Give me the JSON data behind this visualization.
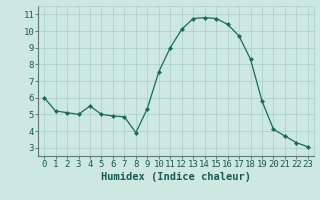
{
  "x": [
    0,
    1,
    2,
    3,
    4,
    5,
    6,
    7,
    8,
    9,
    10,
    11,
    12,
    13,
    14,
    15,
    16,
    17,
    18,
    19,
    20,
    21,
    22,
    23
  ],
  "y": [
    6.0,
    5.2,
    5.1,
    5.0,
    5.5,
    5.0,
    4.9,
    4.85,
    3.9,
    5.35,
    7.55,
    9.0,
    10.1,
    10.75,
    10.8,
    10.75,
    10.4,
    9.7,
    8.3,
    5.8,
    4.1,
    3.7,
    3.3,
    3.05
  ],
  "line_color": "#1a6b5a",
  "marker": "D",
  "marker_size": 2.0,
  "bg_color": "#cce8e0",
  "grid_color": "#a8cec6",
  "xlabel": "Humidex (Indice chaleur)",
  "xlim": [
    -0.5,
    23.5
  ],
  "ylim": [
    2.5,
    11.5
  ],
  "xticks": [
    0,
    1,
    2,
    3,
    4,
    5,
    6,
    7,
    8,
    9,
    10,
    11,
    12,
    13,
    14,
    15,
    16,
    17,
    18,
    19,
    20,
    21,
    22,
    23
  ],
  "yticks": [
    3,
    4,
    5,
    6,
    7,
    8,
    9,
    10,
    11
  ],
  "xlabel_fontsize": 7.5,
  "tick_fontsize": 6.5
}
